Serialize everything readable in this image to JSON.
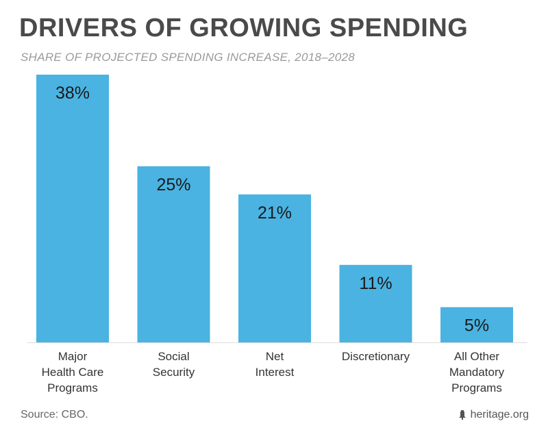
{
  "title": "DRIVERS OF GROWING SPENDING",
  "subtitle": "SHARE OF PROJECTED SPENDING INCREASE, 2018–2028",
  "source": "Source: CBO.",
  "brand": "heritage.org",
  "colors": {
    "bar": "#4ab3e2",
    "title": "#4a4a4a",
    "subtitle": "#9a9a9a",
    "axis": "#dddddd"
  },
  "chart_data": {
    "type": "bar",
    "categories": [
      [
        "Major",
        "Health Care",
        "Programs"
      ],
      [
        "Social",
        "Security"
      ],
      [
        "Net",
        "Interest"
      ],
      [
        "Discretionary"
      ],
      [
        "All Other",
        "Mandatory",
        "Programs"
      ]
    ],
    "values": [
      38,
      25,
      21,
      11,
      5
    ],
    "data_labels": [
      "38%",
      "25%",
      "21%",
      "11%",
      "5%"
    ],
    "ylim": [
      0,
      38
    ],
    "grid": false,
    "legend": "none"
  }
}
